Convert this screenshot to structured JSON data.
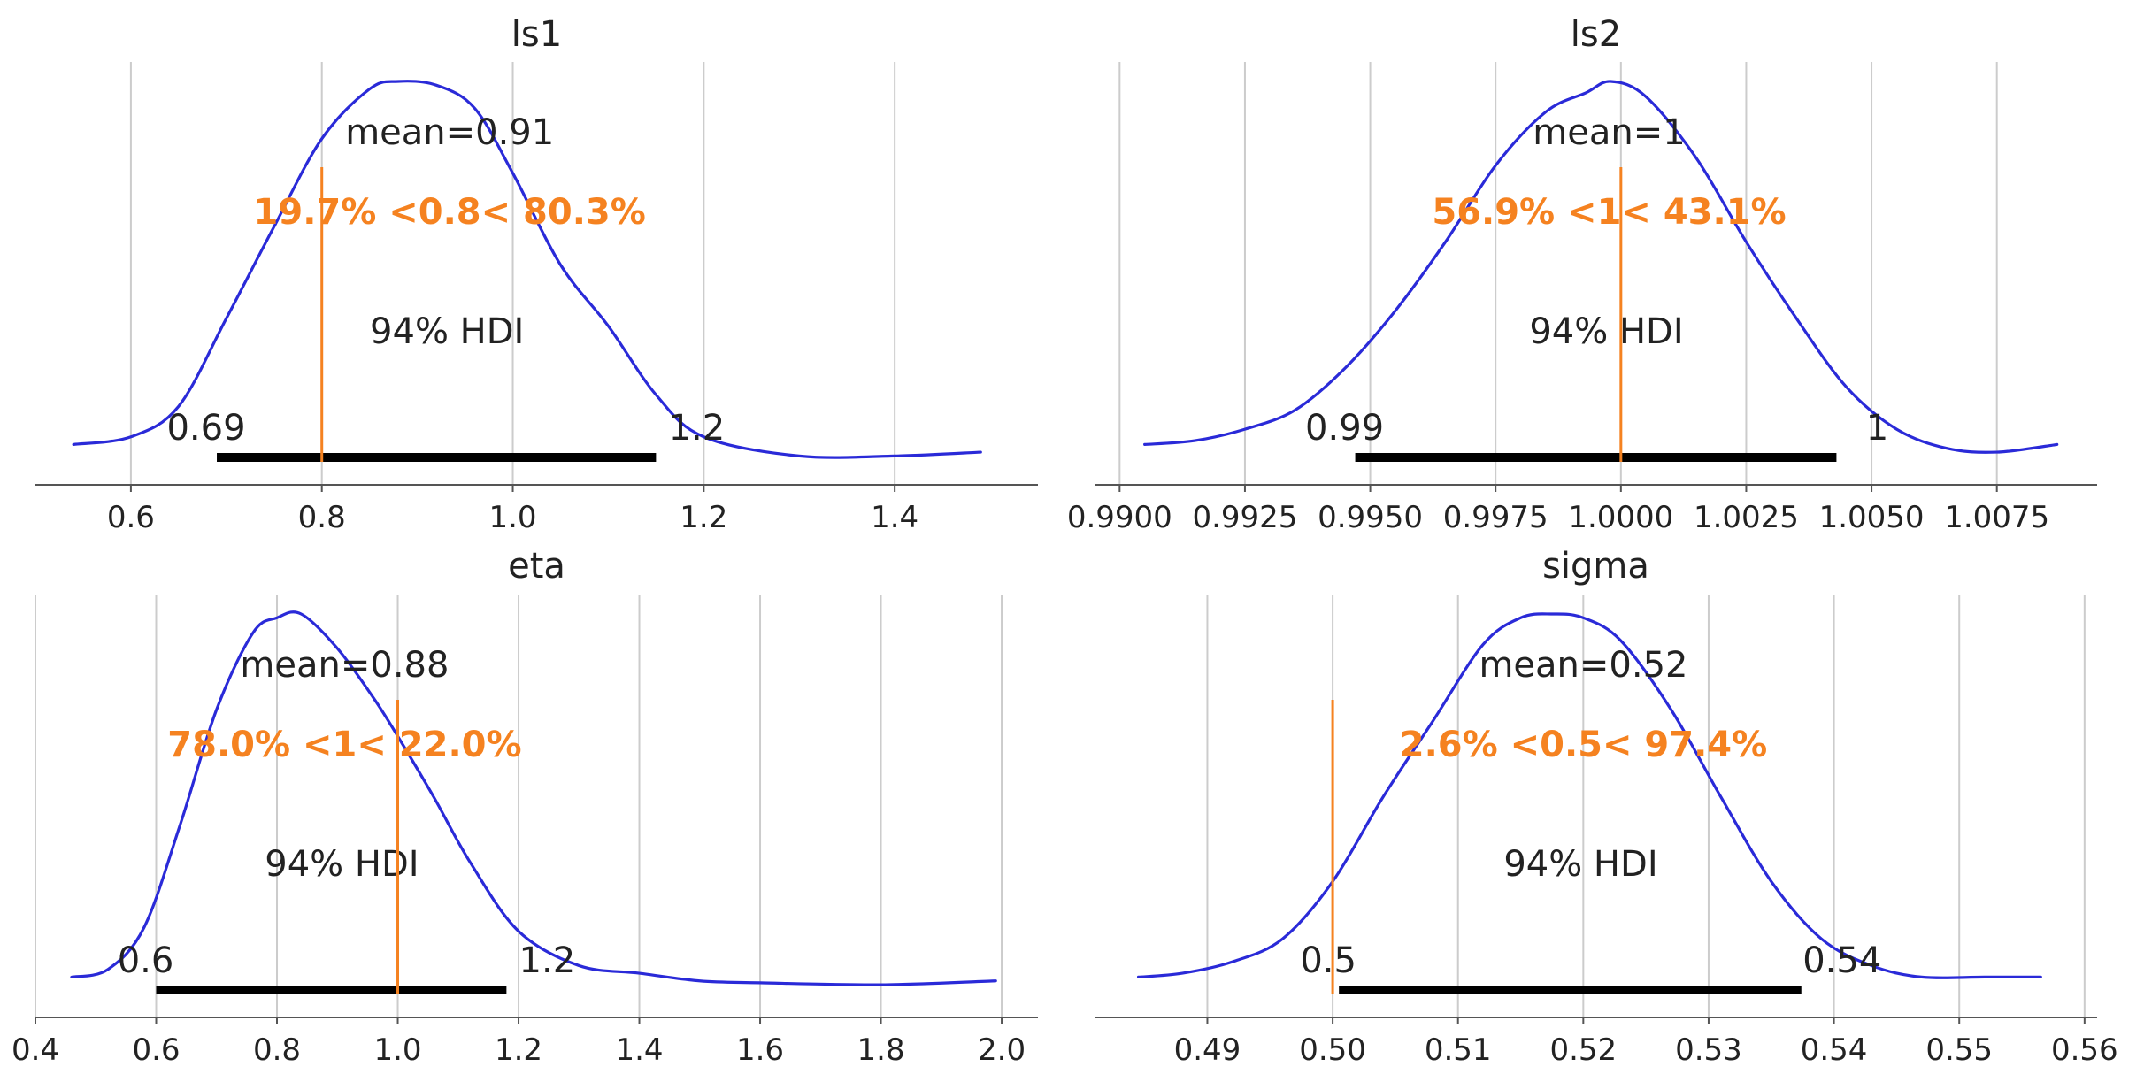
{
  "colors": {
    "kde": "#2a2ad8",
    "reference": "#f58220",
    "hdi": "#000000",
    "text": "#222222",
    "grid": "#cccccc"
  },
  "chart_data": [
    {
      "type": "area",
      "title": "ls1",
      "xlim": [
        0.5,
        1.55
      ],
      "xticks": [
        0.6,
        0.8,
        1.0,
        1.2,
        1.4
      ],
      "xtick_labels": [
        "0.6",
        "0.8",
        "1.0",
        "1.2",
        "1.4"
      ],
      "density": {
        "x": [
          0.54,
          0.6,
          0.65,
          0.7,
          0.75,
          0.8,
          0.85,
          0.88,
          0.92,
          0.96,
          1.0,
          1.05,
          1.1,
          1.15,
          1.2,
          1.3,
          1.4,
          1.49
        ],
        "y": [
          0.05,
          0.07,
          0.15,
          0.38,
          0.62,
          0.85,
          0.98,
          1.0,
          0.99,
          0.93,
          0.76,
          0.52,
          0.36,
          0.18,
          0.07,
          0.02,
          0.02,
          0.03
        ]
      },
      "mean_label": "mean=0.91",
      "hdi_label": "94% HDI",
      "hdi": [
        0.69,
        1.15
      ],
      "hdi_low_label": "0.69",
      "hdi_high_label": "1.2",
      "ref_val": 0.8,
      "ref_label": "19.7% <0.8< 80.3%"
    },
    {
      "type": "area",
      "title": "ls2",
      "xlim": [
        0.9895,
        1.0095
      ],
      "xticks": [
        0.99,
        0.9925,
        0.995,
        0.9975,
        1.0,
        1.0025,
        1.005,
        1.0075
      ],
      "xtick_labels": [
        "0.9900",
        "0.9925",
        "0.9950",
        "0.9975",
        "1.0000",
        "1.0025",
        "1.0050",
        "1.0075"
      ],
      "density": {
        "x": [
          0.9905,
          0.9915,
          0.9925,
          0.9935,
          0.9945,
          0.9955,
          0.9965,
          0.9975,
          0.9985,
          0.9993,
          0.9998,
          1.0005,
          1.0015,
          1.0025,
          1.0035,
          1.0045,
          1.0055,
          1.0065,
          1.0075,
          1.0087
        ],
        "y": [
          0.05,
          0.06,
          0.09,
          0.14,
          0.25,
          0.4,
          0.58,
          0.78,
          0.92,
          0.97,
          1.0,
          0.96,
          0.8,
          0.58,
          0.38,
          0.2,
          0.09,
          0.04,
          0.03,
          0.05
        ]
      },
      "mean_label": "mean=1",
      "hdi_label": "94% HDI",
      "hdi": [
        0.9947,
        1.0043
      ],
      "hdi_low_label": "0.99",
      "hdi_high_label": "1",
      "ref_val": 1.0,
      "ref_label": "56.9% <1< 43.1%"
    },
    {
      "type": "area",
      "title": "eta",
      "xlim": [
        0.4,
        2.06
      ],
      "xticks": [
        0.4,
        0.6,
        0.8,
        1.0,
        1.2,
        1.4,
        1.6,
        1.8,
        2.0
      ],
      "xtick_labels": [
        "0.4",
        "0.6",
        "0.8",
        "1.0",
        "1.2",
        "1.4",
        "1.6",
        "1.8",
        "2.0"
      ],
      "density": {
        "x": [
          0.46,
          0.52,
          0.58,
          0.64,
          0.7,
          0.76,
          0.8,
          0.84,
          0.9,
          0.96,
          1.0,
          1.06,
          1.12,
          1.2,
          1.3,
          1.4,
          1.5,
          1.6,
          1.8,
          1.99
        ],
        "y": [
          0.05,
          0.07,
          0.18,
          0.45,
          0.75,
          0.95,
          0.99,
          1.0,
          0.91,
          0.78,
          0.68,
          0.52,
          0.35,
          0.17,
          0.08,
          0.06,
          0.04,
          0.035,
          0.03,
          0.04
        ]
      },
      "mean_label": "mean=0.88",
      "hdi_label": "94% HDI",
      "hdi": [
        0.6,
        1.18
      ],
      "hdi_low_label": "0.6",
      "hdi_high_label": "1.2",
      "ref_val": 1.0,
      "ref_label": "78.0% <1< 22.0%"
    },
    {
      "type": "area",
      "title": "sigma",
      "xlim": [
        0.481,
        0.561
      ],
      "xticks": [
        0.49,
        0.5,
        0.51,
        0.52,
        0.53,
        0.54,
        0.55,
        0.56
      ],
      "xtick_labels": [
        "0.49",
        "0.50",
        "0.51",
        "0.52",
        "0.53",
        "0.54",
        "0.55",
        "0.56"
      ],
      "density": {
        "x": [
          0.4845,
          0.488,
          0.492,
          0.496,
          0.5,
          0.504,
          0.508,
          0.512,
          0.515,
          0.5175,
          0.52,
          0.523,
          0.527,
          0.531,
          0.535,
          0.539,
          0.543,
          0.547,
          0.552,
          0.5565
        ],
        "y": [
          0.05,
          0.06,
          0.09,
          0.15,
          0.3,
          0.52,
          0.72,
          0.92,
          0.99,
          1.0,
          0.99,
          0.93,
          0.75,
          0.52,
          0.3,
          0.15,
          0.08,
          0.05,
          0.05,
          0.05
        ]
      },
      "mean_label": "mean=0.52",
      "hdi_label": "94% HDI",
      "hdi": [
        0.5005,
        0.5374
      ],
      "hdi_low_label": "0.5",
      "hdi_high_label": "0.54",
      "ref_val": 0.5,
      "ref_label": "2.6% <0.5< 97.4%"
    }
  ]
}
